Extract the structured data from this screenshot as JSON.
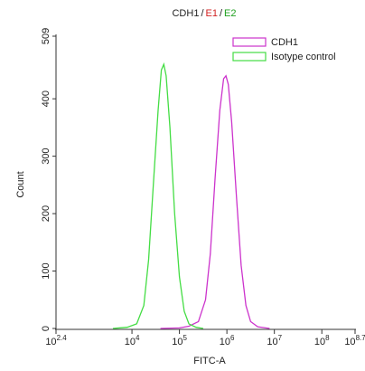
{
  "chart_data": {
    "type": "line",
    "title_parts": [
      "CDH1",
      "/",
      "E1",
      "/",
      "E2"
    ],
    "title_colors": [
      "#222222",
      "#222222",
      "#d22020",
      "#222222",
      "#20a020"
    ],
    "xlabel": "FITC-A",
    "ylabel": "Count",
    "xscale": "log",
    "xlim": [
      251.1886,
      501187233.6
    ],
    "xticks": [
      {
        "value": 251.1886,
        "label": "10",
        "exponent": "2.4"
      },
      {
        "value": 10000,
        "label": "10",
        "exponent": "4"
      },
      {
        "value": 100000,
        "label": "10",
        "exponent": "5"
      },
      {
        "value": 1000000,
        "label": "10",
        "exponent": "6"
      },
      {
        "value": 10000000,
        "label": "10",
        "exponent": "7"
      },
      {
        "value": 100000000,
        "label": "10",
        "exponent": "8"
      },
      {
        "value": 501187233.6,
        "label": "10",
        "exponent": "8.7"
      }
    ],
    "ylim": [
      0,
      509
    ],
    "yticks": [
      0,
      100,
      200,
      300,
      400,
      509
    ],
    "legend": "upper right",
    "series": [
      {
        "name": "CDH1",
        "color": "#cc33cc",
        "x": [
          39811,
          100000,
          158489,
          251189,
          354813,
          446684,
          562341,
          707946,
          851138,
          954993,
          1071519,
          1258925,
          1584893,
          1995262,
          2511886,
          3162278,
          4466836,
          7943282
        ],
        "values": [
          0,
          1,
          4,
          12,
          50,
          130,
          260,
          380,
          435,
          440,
          425,
          360,
          230,
          110,
          40,
          12,
          3,
          0
        ]
      },
      {
        "name": "Isotype control",
        "color": "#44dd44",
        "x": [
          3981,
          7943,
          12589,
          17783,
          22387,
          28184,
          35481,
          41687,
          46774,
          52481,
          63096,
          79433,
          100000,
          125893,
          158489,
          223872,
          316228
        ],
        "values": [
          0,
          2,
          8,
          40,
          120,
          250,
          380,
          450,
          460,
          440,
          350,
          200,
          90,
          30,
          8,
          2,
          0
        ]
      }
    ]
  }
}
